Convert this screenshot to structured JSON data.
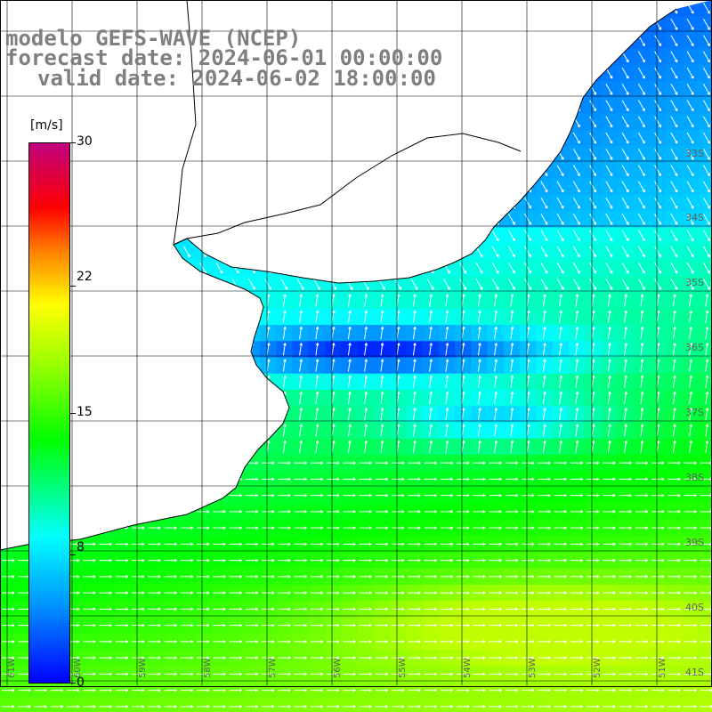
{
  "title": {
    "line1": "modelo GEFS-WAVE (NCEP)",
    "line2": "forecast date: 2024-06-01 00:00:00",
    "line3": "valid date: 2024-06-02 18:00:00"
  },
  "colorbar": {
    "unit": "[m/s]",
    "ticks": [
      "30",
      "22",
      "15",
      "8",
      "0"
    ],
    "tick_values": [
      30,
      22,
      15,
      8,
      0
    ],
    "colors": [
      "#0000ff",
      "#0090ff",
      "#00ffff",
      "#00ff00",
      "#90ff00",
      "#ffff00",
      "#ff8000",
      "#ff0000",
      "#c0007f"
    ]
  },
  "latitude_labels": [
    "33S",
    "34S",
    "35S",
    "36S",
    "37S",
    "38S",
    "39S",
    "40S",
    "41S"
  ],
  "longitude_labels": [
    "61W",
    "60W",
    "59W",
    "58W",
    "57W",
    "56W",
    "55W",
    "54W",
    "53W",
    "52W",
    "51W"
  ],
  "map": {
    "variable": "wind speed and direction",
    "land_color": "#ffffff",
    "coast_color": "#000000",
    "grid_color": "#000000",
    "arrow_color": "#ffffff"
  }
}
